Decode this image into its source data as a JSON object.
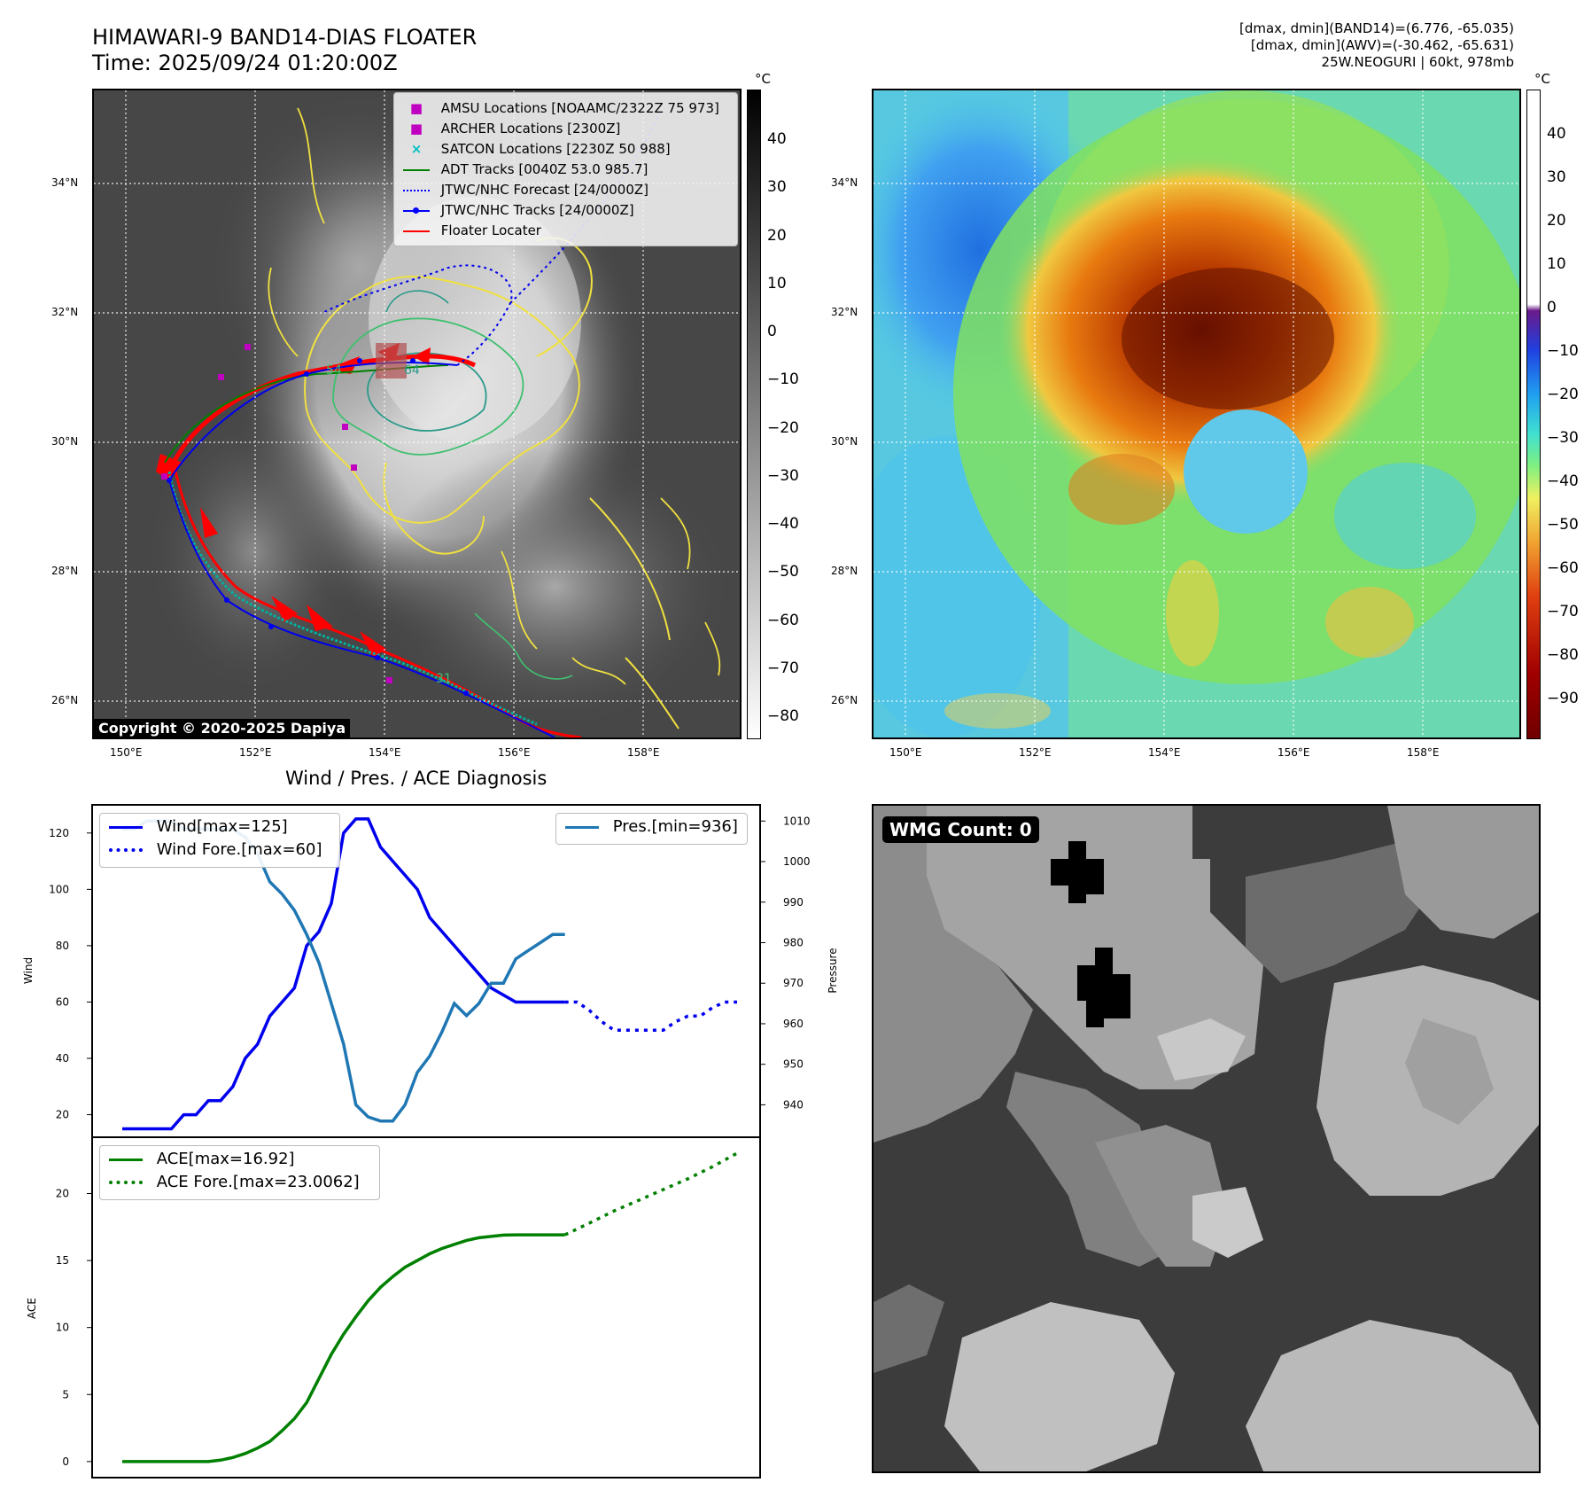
{
  "header": {
    "title_line1": "HIMAWARI-9 BAND14-DIAS FLOATER",
    "title_line2": "Time: 2025/09/24 01:20:00Z",
    "info_line1": "[dmax, dmin](BAND14)=(6.776, -65.035)",
    "info_line2": "[dmax, dmin](AWV)=(-30.462, -65.631)",
    "info_line3": "25W.NEOGURI | 60kt, 978mb"
  },
  "map": {
    "lat_labels": [
      "34°N",
      "32°N",
      "30°N",
      "28°N",
      "26°N"
    ],
    "lon_labels": [
      "150°E",
      "152°E",
      "154°E",
      "156°E",
      "158°E"
    ],
    "copyright": "Copyright © 2020-2025 Dapiya",
    "legend": [
      {
        "label": "AMSU Locations [NOAAMC/2322Z 75 973]",
        "marker": "square",
        "color": "#c000c0"
      },
      {
        "label": "ARCHER Locations [2300Z]",
        "marker": "square",
        "color": "#c000c0"
      },
      {
        "label": "SATCON Locations [2230Z 50 988]",
        "marker": "x",
        "color": "#00c0c0"
      },
      {
        "label": "ADT Tracks [0040Z 53.0 985.7]",
        "marker": "line",
        "color": "#008000"
      },
      {
        "label": "JTWC/NHC Forecast [24/0000Z]",
        "marker": "dotted",
        "color": "#0000ff"
      },
      {
        "label": "JTWC/NHC Tracks [24/0000Z]",
        "marker": "dotline",
        "color": "#0000ff"
      },
      {
        "label": "Floater Locater",
        "marker": "line",
        "color": "#ff0000"
      }
    ],
    "contour_labels": [
      "54",
      "64",
      "31"
    ]
  },
  "colorbar_ir": {
    "unit": "°C",
    "ticks": [
      "40",
      "30",
      "20",
      "10",
      "0",
      "−10",
      "−20",
      "−30",
      "−40",
      "−50",
      "−60",
      "−70",
      "−80"
    ]
  },
  "colorbar_awv": {
    "unit": "°C",
    "ticks": [
      "40",
      "30",
      "20",
      "10",
      "0",
      "−10",
      "−20",
      "−30",
      "−40",
      "−50",
      "−60",
      "−70",
      "−80",
      "−90"
    ]
  },
  "wmg": {
    "label": "WMG Count: 0"
  },
  "colors": {
    "wind": "#0000ee",
    "pressure": "#1f77b4",
    "ace": "#008000",
    "track_red": "#ff0000",
    "contour_yellow": "#f0e040",
    "contour_green": "#40c070"
  },
  "chart_data": [
    {
      "type": "line",
      "title": "Wind / Pres. / ACE Diagnosis",
      "ylabel": "Wind",
      "y2label": "Pressure",
      "ylim": [
        12,
        130
      ],
      "y2lim": [
        932,
        1014
      ],
      "yticks": [
        "120",
        "100",
        "80",
        "60",
        "40",
        "20"
      ],
      "y2ticks": [
        "1010",
        "1000",
        "990",
        "980",
        "970",
        "960",
        "950",
        "940"
      ],
      "x": [
        0,
        1,
        2,
        3,
        4,
        5,
        6,
        7,
        8,
        9,
        10,
        11,
        12,
        13,
        14,
        15,
        16,
        17,
        18,
        19,
        20,
        21,
        22,
        23,
        24,
        25,
        26,
        27,
        28,
        29,
        30,
        31,
        32,
        33,
        34,
        35,
        36,
        37,
        38,
        39,
        40,
        41,
        42,
        43,
        44,
        45,
        46,
        47,
        48,
        49,
        50
      ],
      "series": [
        {
          "name": "Wind[max=125]",
          "axis": "left",
          "style": "solid",
          "x": [
            0,
            4,
            5,
            6,
            7,
            8,
            9,
            10,
            11,
            12,
            13,
            14,
            15,
            16,
            17,
            18,
            19,
            20,
            21,
            22,
            23,
            24,
            25,
            26,
            27,
            28,
            30,
            32,
            34,
            36
          ],
          "values": [
            15,
            15,
            20,
            20,
            25,
            25,
            30,
            40,
            45,
            55,
            60,
            65,
            80,
            85,
            95,
            120,
            125,
            125,
            115,
            110,
            105,
            100,
            90,
            85,
            80,
            75,
            65,
            60,
            60,
            60
          ]
        },
        {
          "name": "Wind Fore.[max=60]",
          "axis": "left",
          "style": "dotted",
          "x": [
            36,
            37,
            38,
            39,
            40,
            41,
            42,
            43,
            44,
            45,
            46,
            47,
            48,
            49,
            50
          ],
          "values": [
            60,
            60,
            57,
            53,
            50,
            50,
            50,
            50,
            50,
            53,
            55,
            55,
            58,
            60,
            60
          ]
        },
        {
          "name": "Pres.[min=936]",
          "axis": "right",
          "style": "solid",
          "x": [
            0,
            1,
            2,
            3,
            4,
            5,
            6,
            7,
            8,
            9,
            10,
            11,
            12,
            13,
            14,
            15,
            16,
            17,
            18,
            19,
            20,
            21,
            22,
            23,
            24,
            25,
            26,
            27,
            28,
            29,
            30,
            31,
            32,
            33,
            34,
            35,
            36
          ],
          "values": [
            1008,
            1008,
            1010,
            1010,
            1010,
            1008,
            1008,
            1008,
            1008,
            1008,
            1006,
            1002,
            995,
            992,
            988,
            982,
            975,
            965,
            955,
            940,
            937,
            936,
            936,
            940,
            948,
            952,
            958,
            965,
            962,
            965,
            970,
            970,
            976,
            978,
            980,
            982,
            982
          ]
        }
      ]
    },
    {
      "type": "line",
      "ylabel": "ACE",
      "ylim": [
        -1.2,
        24.2
      ],
      "yticks": [
        "20",
        "15",
        "10",
        "5",
        "0"
      ],
      "series": [
        {
          "name": "ACE[max=16.92]",
          "style": "solid",
          "x": [
            0,
            1,
            2,
            3,
            4,
            5,
            6,
            7,
            8,
            9,
            10,
            11,
            12,
            13,
            14,
            15,
            16,
            17,
            18,
            19,
            20,
            21,
            22,
            23,
            24,
            25,
            26,
            27,
            28,
            29,
            30,
            31,
            32,
            33,
            34,
            35,
            36
          ],
          "values": [
            0,
            0,
            0,
            0,
            0,
            0,
            0,
            0,
            0.1,
            0.3,
            0.6,
            1.0,
            1.5,
            2.3,
            3.2,
            4.4,
            6.2,
            8.0,
            9.5,
            10.8,
            12.0,
            13.0,
            13.8,
            14.5,
            15.0,
            15.5,
            15.9,
            16.2,
            16.5,
            16.7,
            16.8,
            16.9,
            16.92,
            16.92,
            16.92,
            16.92,
            16.92
          ]
        },
        {
          "name": "ACE Fore.[max=23.0062]",
          "style": "dotted",
          "x": [
            36,
            38,
            40,
            42,
            44,
            46,
            48,
            50
          ],
          "values": [
            16.92,
            17.8,
            18.7,
            19.5,
            20.3,
            21.1,
            22.0,
            23.0062
          ]
        }
      ]
    }
  ]
}
